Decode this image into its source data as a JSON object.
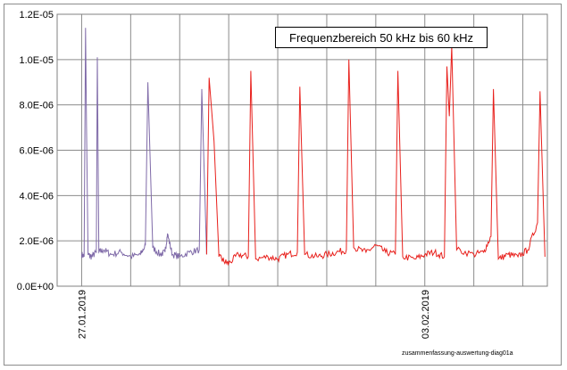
{
  "chart_data": {
    "type": "line",
    "annotation": "Frequenzbereich 50 kHz bis 60 kHz",
    "footnote": "zusammenfassung-auswertung-diag01a",
    "ylim": [
      0,
      1.2e-05
    ],
    "ytick_labels": [
      "0.0E+00",
      "2.0E-06",
      "4.0E-06",
      "6.0E-06",
      "8.0E-06",
      "1.0E-05",
      "1.2E-05"
    ],
    "ytick_values": [
      0,
      2e-06,
      4e-06,
      6e-06,
      8e-06,
      1e-05,
      1.2e-05
    ],
    "xlim_days": [
      -0.5,
      9.5
    ],
    "xtick_labels": [
      {
        "label": "27.01.2019",
        "day": 0
      },
      {
        "label": "03.02.2019",
        "day": 7
      }
    ],
    "grid": true,
    "series": [
      {
        "color": "#7f6aa8",
        "x_days": [
          0.0,
          0.05,
          0.08,
          0.1,
          0.13,
          0.2,
          0.3,
          0.32,
          0.35,
          0.45,
          0.6,
          0.8,
          1.0,
          1.2,
          1.3,
          1.35,
          1.45,
          1.6,
          1.7,
          1.75,
          1.85,
          2.0,
          2.2,
          2.4,
          2.45,
          2.55
        ],
        "values": [
          1.4e-06,
          1.3e-06,
          1.14e-05,
          7e-06,
          1.4e-06,
          1.3e-06,
          1.5e-06,
          1.01e-05,
          1.5e-06,
          1.6e-06,
          1.4e-06,
          1.5e-06,
          1.3e-06,
          1.4e-06,
          1.8e-06,
          9e-06,
          1.7e-06,
          1.4e-06,
          1.5e-06,
          2.3e-06,
          1.4e-06,
          1.3e-06,
          1.5e-06,
          1.6e-06,
          8.7e-06,
          1.4e-06
        ]
      },
      {
        "color": "#e8201c",
        "x_days": [
          2.55,
          2.6,
          2.7,
          2.8,
          2.9,
          3.0,
          3.2,
          3.4,
          3.45,
          3.55,
          3.8,
          4.0,
          4.2,
          4.4,
          4.45,
          4.55,
          4.8,
          5.0,
          5.2,
          5.4,
          5.45,
          5.55,
          5.8,
          6.0,
          6.2,
          6.4,
          6.45,
          6.55,
          6.8,
          7.0,
          7.2,
          7.4,
          7.45,
          7.5,
          7.55,
          7.65,
          8.0,
          8.2,
          8.35,
          8.4,
          8.5,
          8.7,
          8.9,
          9.1,
          9.3,
          9.35,
          9.45
        ],
        "values": [
          1.4e-06,
          9.2e-06,
          6.4e-06,
          1.3e-06,
          1.1e-06,
          1e-06,
          1.4e-06,
          1.3e-06,
          9.5e-06,
          1.2e-06,
          1.3e-06,
          1.2e-06,
          1.4e-06,
          1.5e-06,
          8.8e-06,
          1.4e-06,
          1.3e-06,
          1.4e-06,
          1.5e-06,
          1.6e-06,
          1e-05,
          1.7e-06,
          1.5e-06,
          1.8e-06,
          1.5e-06,
          1.4e-06,
          9.5e-06,
          1.3e-06,
          1.2e-06,
          1.4e-06,
          1.5e-06,
          1.3e-06,
          9.7e-06,
          7.5e-06,
          1.06e-05,
          1.6e-06,
          1.4e-06,
          1.5e-06,
          2.2e-06,
          8.7e-06,
          1.2e-06,
          1.4e-06,
          1.3e-06,
          1.6e-06,
          2.8e-06,
          8.6e-06,
          1.3e-06
        ]
      }
    ]
  },
  "colors": {
    "grid": "#8c8c8c",
    "axis": "#808080",
    "series_purple": "#7f6aa8",
    "series_red": "#e8201c"
  }
}
